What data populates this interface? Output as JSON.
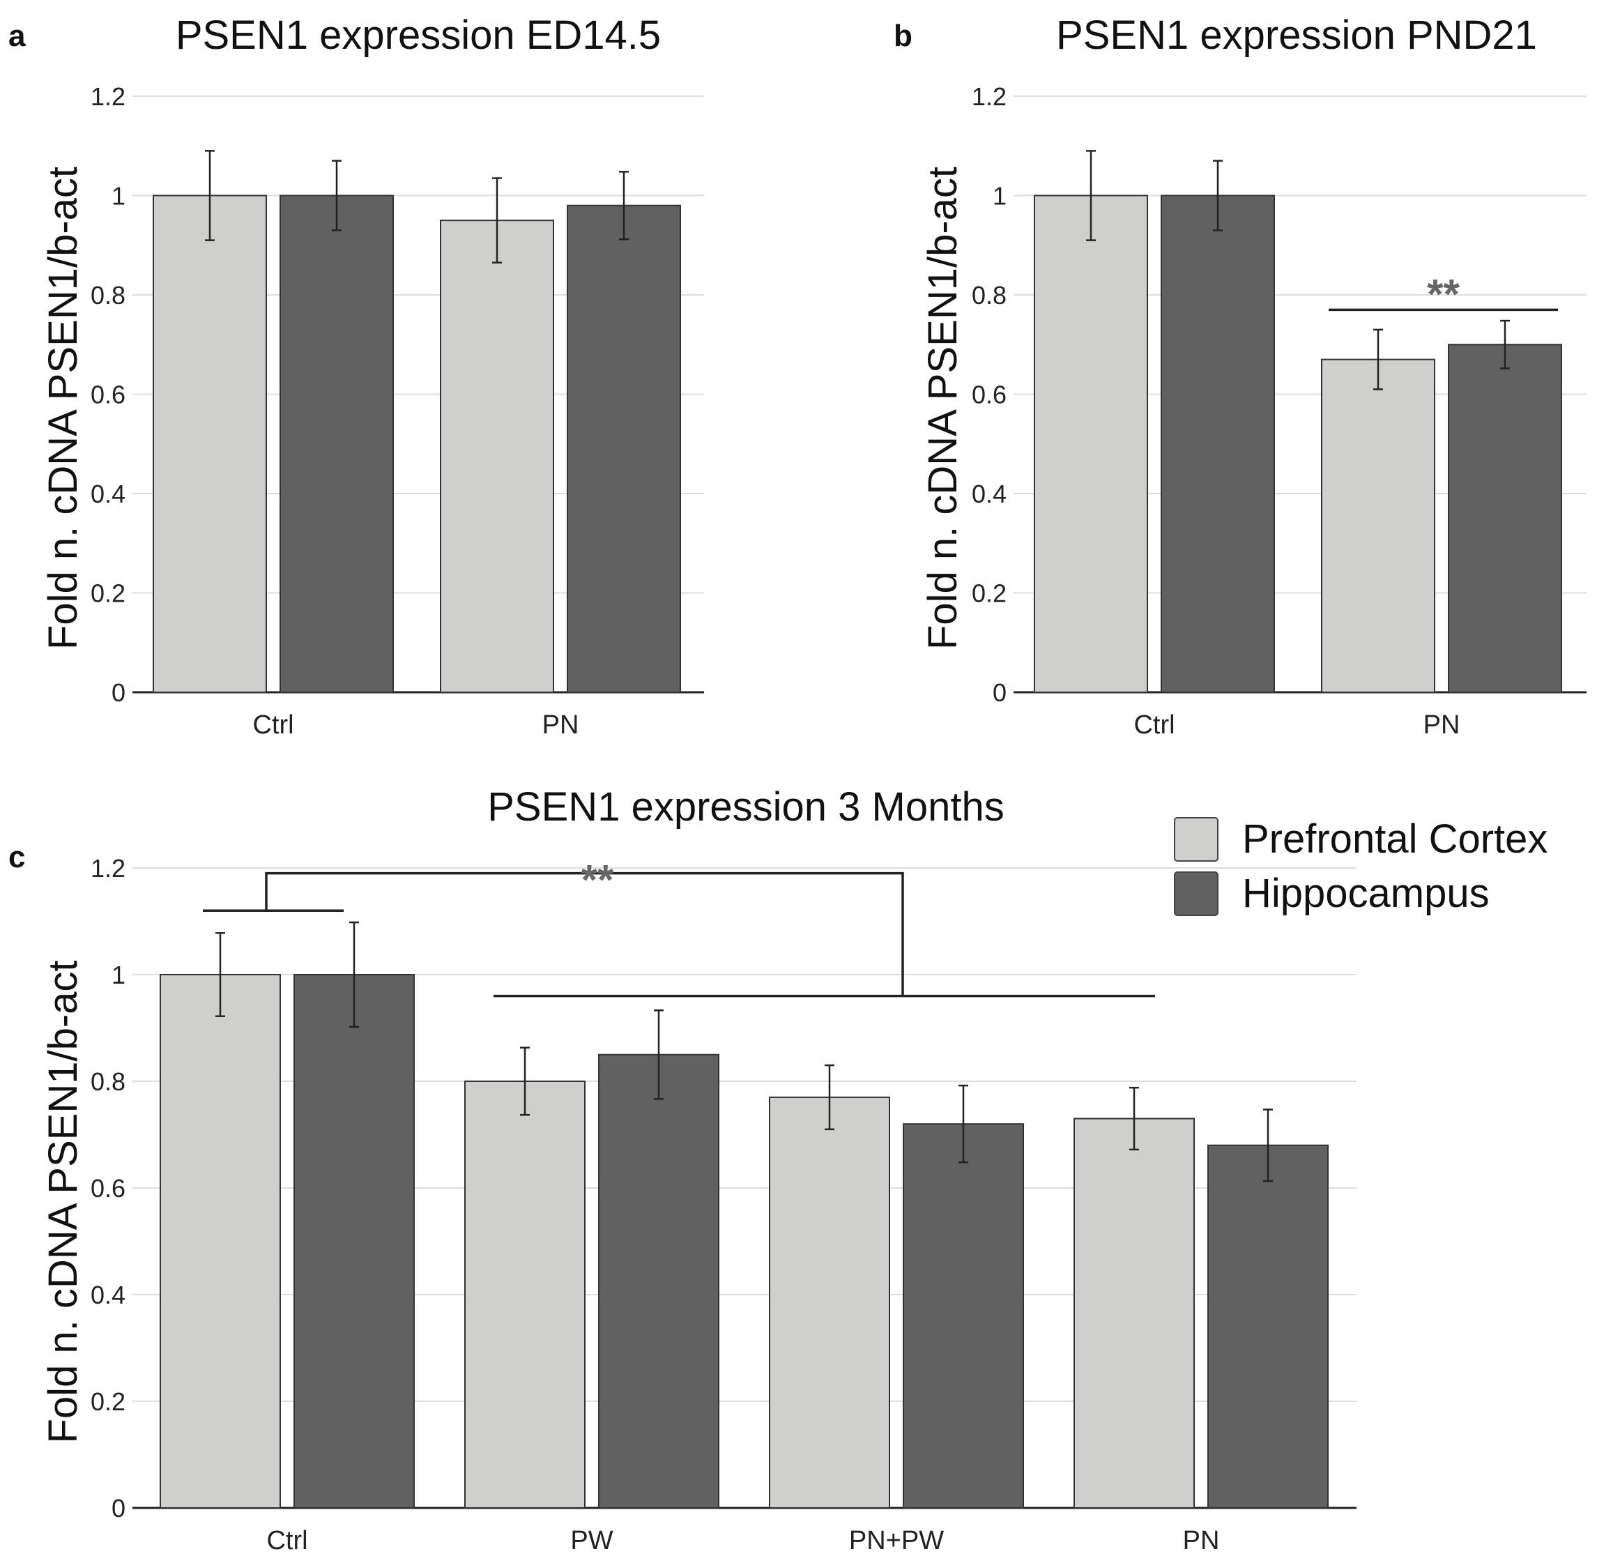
{
  "colors": {
    "prefrontal": "#cfcfcd",
    "hippocampus": "#616161"
  },
  "legend": {
    "items": [
      {
        "label": "Prefrontal Cortex",
        "color": "#cfcfcd"
      },
      {
        "label": "Hippocampus",
        "color": "#616161"
      }
    ],
    "placement": "top-right"
  },
  "chart_data": [
    {
      "id": "a",
      "panel_label": "a",
      "type": "bar",
      "title": "PSEN1 expression ED14.5",
      "ylabel": "Fold n. cDNA PSEN1/b-act",
      "xlabel": "",
      "ylim": [
        0,
        1.2
      ],
      "yticks": [
        "0",
        "0.2",
        "0.4",
        "0.6",
        "0.8",
        "1",
        "1.2"
      ],
      "categories": [
        "Ctrl",
        "PN"
      ],
      "series": [
        {
          "name": "Prefrontal Cortex",
          "values": [
            1.0,
            0.95
          ],
          "errors": [
            0.09,
            0.085
          ]
        },
        {
          "name": "Hippocampus",
          "values": [
            1.0,
            0.98
          ],
          "errors": [
            0.07,
            0.068
          ]
        }
      ],
      "grid": true,
      "annotations": []
    },
    {
      "id": "b",
      "panel_label": "b",
      "type": "bar",
      "title": "PSEN1 expression PND21",
      "ylabel": "Fold n. cDNA PSEN1/b-act",
      "xlabel": "",
      "ylim": [
        0,
        1.2
      ],
      "yticks": [
        "0",
        "0.2",
        "0.4",
        "0.6",
        "0.8",
        "1",
        "1.2"
      ],
      "categories": [
        "Ctrl",
        "PN"
      ],
      "series": [
        {
          "name": "Prefrontal Cortex",
          "values": [
            1.0,
            0.67
          ],
          "errors": [
            0.09,
            0.06
          ]
        },
        {
          "name": "Hippocampus",
          "values": [
            1.0,
            0.7
          ],
          "errors": [
            0.07,
            0.048
          ]
        }
      ],
      "grid": true,
      "annotations": [
        {
          "text": "**",
          "type": "line",
          "category": "PN",
          "y": 0.77
        }
      ]
    },
    {
      "id": "c",
      "panel_label": "c",
      "type": "bar",
      "title": "PSEN1 expression 3 Months",
      "ylabel": "Fold n. cDNA PSEN1/b-act",
      "xlabel": "",
      "ylim": [
        0,
        1.2
      ],
      "yticks": [
        "0",
        "0.2",
        "0.4",
        "0.6",
        "0.8",
        "1",
        "1.2"
      ],
      "categories": [
        "Ctrl",
        "PW",
        "PN+PW",
        "PN"
      ],
      "series": [
        {
          "name": "Prefrontal Cortex",
          "values": [
            1.0,
            0.8,
            0.77,
            0.73
          ],
          "errors": [
            0.078,
            0.063,
            0.06,
            0.058
          ]
        },
        {
          "name": "Hippocampus",
          "values": [
            1.0,
            0.85,
            0.72,
            0.68
          ],
          "errors": [
            0.098,
            0.083,
            0.072,
            0.067
          ]
        }
      ],
      "grid": true,
      "annotations": [
        {
          "text": "**",
          "type": "bracket",
          "from_categories": [
            "Ctrl"
          ],
          "to_categories": [
            "PW",
            "PN+PW",
            "PN"
          ],
          "y_low_left": 1.12,
          "y_low_right": 0.96,
          "y_top": 1.19
        }
      ]
    }
  ]
}
